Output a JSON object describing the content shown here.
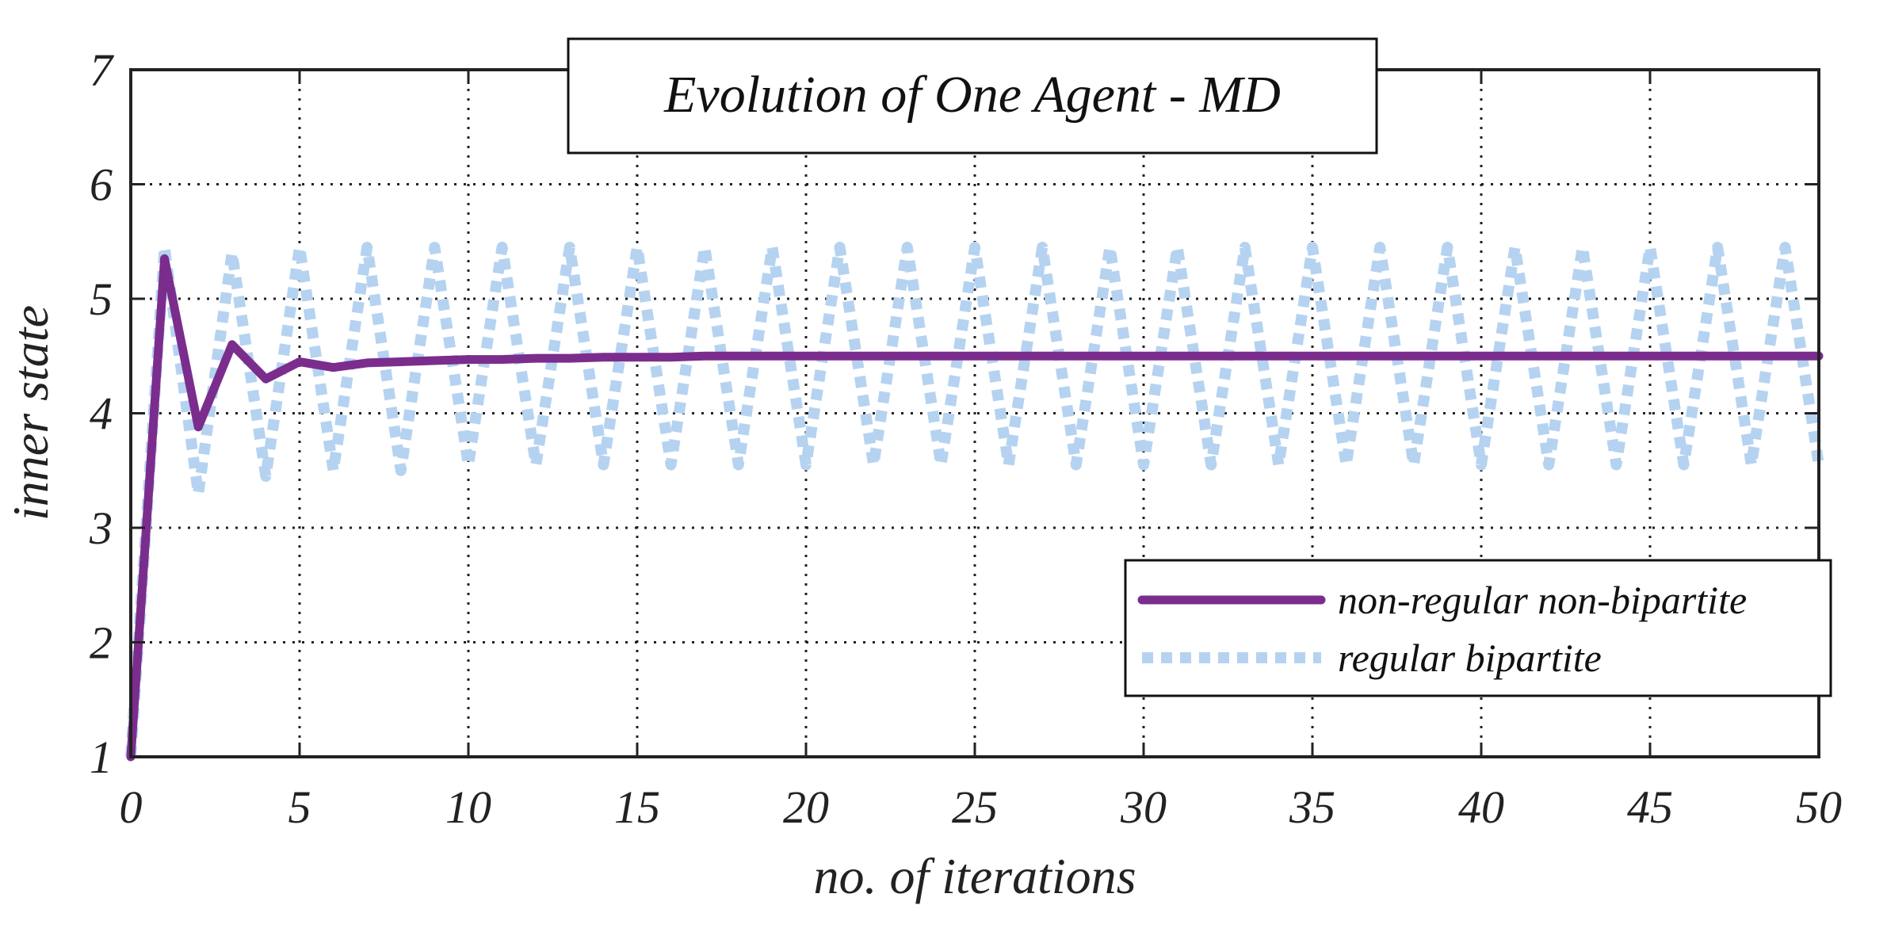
{
  "chart_data": {
    "type": "line",
    "title": "Evolution of One Agent - MD",
    "xlabel": "no. of iterations",
    "ylabel": "inner state",
    "xlim": [
      0,
      50
    ],
    "ylim": [
      1,
      7
    ],
    "xticks": [
      0,
      5,
      10,
      15,
      20,
      25,
      30,
      35,
      40,
      45,
      50
    ],
    "yticks": [
      1,
      2,
      3,
      4,
      5,
      6,
      7
    ],
    "grid": true,
    "legend_position": "lower-right",
    "series": [
      {
        "name": "non-regular non-bipartite",
        "color": "#7B2D8E",
        "style": "solid",
        "x": [
          0,
          1,
          2,
          3,
          4,
          5,
          6,
          7,
          8,
          9,
          10,
          11,
          12,
          13,
          14,
          15,
          16,
          17,
          18,
          19,
          20,
          21,
          22,
          23,
          24,
          25,
          26,
          27,
          28,
          29,
          30,
          31,
          32,
          33,
          34,
          35,
          36,
          37,
          38,
          39,
          40,
          41,
          42,
          43,
          44,
          45,
          46,
          47,
          48,
          49,
          50
        ],
        "y": [
          1.0,
          5.35,
          3.88,
          4.6,
          4.3,
          4.45,
          4.4,
          4.44,
          4.45,
          4.46,
          4.47,
          4.47,
          4.48,
          4.48,
          4.49,
          4.49,
          4.49,
          4.5,
          4.5,
          4.5,
          4.5,
          4.5,
          4.5,
          4.5,
          4.5,
          4.5,
          4.5,
          4.5,
          4.5,
          4.5,
          4.5,
          4.5,
          4.5,
          4.5,
          4.5,
          4.5,
          4.5,
          4.5,
          4.5,
          4.5,
          4.5,
          4.5,
          4.5,
          4.5,
          4.5,
          4.5,
          4.5,
          4.5,
          4.5,
          4.5,
          4.5
        ]
      },
      {
        "name": "regular bipartite",
        "color": "#B5D3F0",
        "style": "dotted",
        "x": [
          0,
          1,
          2,
          3,
          4,
          5,
          6,
          7,
          8,
          9,
          10,
          11,
          12,
          13,
          14,
          15,
          16,
          17,
          18,
          19,
          20,
          21,
          22,
          23,
          24,
          25,
          26,
          27,
          28,
          29,
          30,
          31,
          32,
          33,
          34,
          35,
          36,
          37,
          38,
          39,
          40,
          41,
          42,
          43,
          44,
          45,
          46,
          47,
          48,
          49,
          50
        ],
        "y": [
          1.0,
          5.45,
          3.3,
          5.4,
          3.45,
          5.45,
          3.5,
          5.45,
          3.5,
          5.45,
          3.55,
          5.45,
          3.55,
          5.45,
          3.55,
          5.45,
          3.55,
          5.45,
          3.55,
          5.45,
          3.55,
          5.45,
          3.55,
          5.45,
          3.55,
          5.45,
          3.55,
          5.45,
          3.55,
          5.45,
          3.55,
          5.45,
          3.55,
          5.45,
          3.55,
          5.45,
          3.55,
          5.45,
          3.55,
          5.45,
          3.55,
          5.45,
          3.55,
          5.45,
          3.55,
          5.45,
          3.55,
          5.45,
          3.55,
          5.45,
          3.55
        ]
      }
    ]
  }
}
